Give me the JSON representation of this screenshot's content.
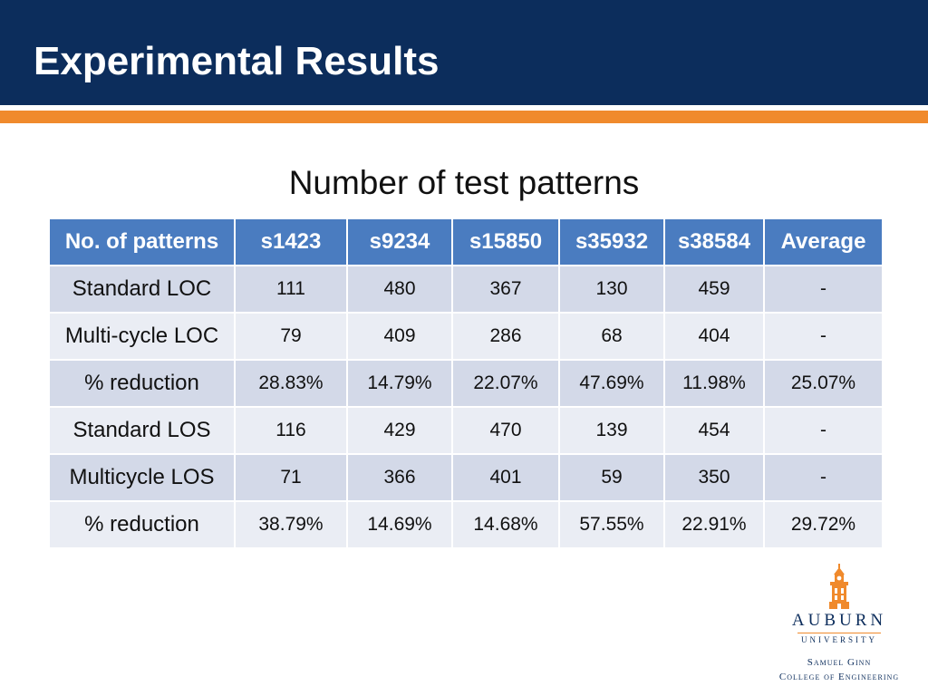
{
  "slide": {
    "title": "Experimental Results",
    "subtitle": "Number of test patterns"
  },
  "colors": {
    "header": "#0c2d5c",
    "accent": "#f08a2c",
    "table_header": "#4a7cc0",
    "row_odd": "#d3d9e8",
    "row_even": "#eaedf4"
  },
  "table": {
    "headers": [
      "No. of patterns",
      "s1423",
      "s9234",
      "s15850",
      "s35932",
      "s38584",
      "Average"
    ],
    "rows": [
      [
        "Standard LOC",
        "111",
        "480",
        "367",
        "130",
        "459",
        "-"
      ],
      [
        "Multi-cycle LOC",
        "79",
        "409",
        "286",
        "68",
        "404",
        "-"
      ],
      [
        "% reduction",
        "28.83%",
        "14.79%",
        "22.07%",
        "47.69%",
        "11.98%",
        "25.07%"
      ],
      [
        "Standard LOS",
        "116",
        "429",
        "470",
        "139",
        "454",
        "-"
      ],
      [
        "Multicycle LOS",
        "71",
        "366",
        "401",
        "59",
        "350",
        "-"
      ],
      [
        "% reduction",
        "38.79%",
        "14.69%",
        "14.68%",
        "57.55%",
        "22.91%",
        "29.72%"
      ]
    ]
  },
  "logo": {
    "icon": "tower-icon",
    "name": "AUBURN",
    "sub": "UNIVERSITY",
    "line1": "Samuel Ginn",
    "line2": "College of Engineering"
  }
}
